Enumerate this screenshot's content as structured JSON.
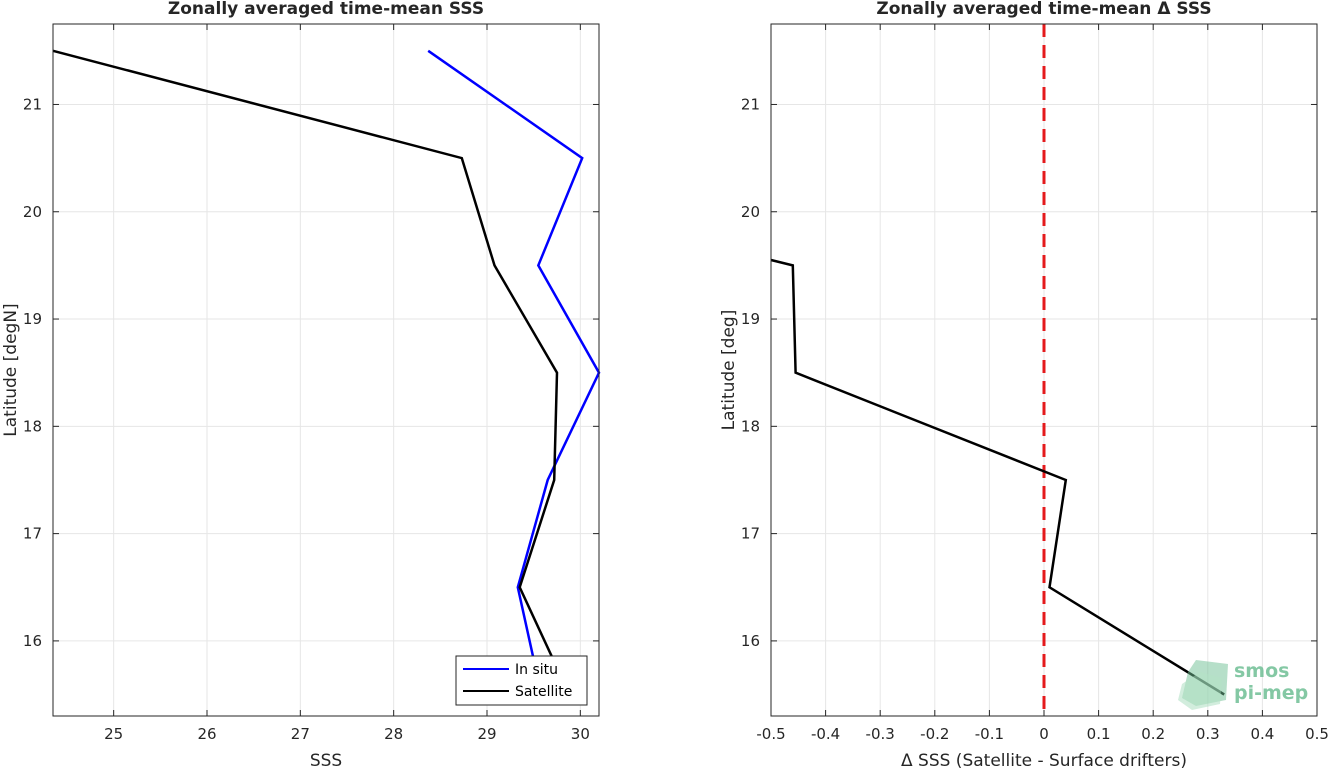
{
  "chart_data": [
    {
      "type": "line",
      "title": "Zonally averaged time-mean SSS",
      "xlabel": "SSS",
      "ylabel": "Latitude [degN]",
      "xlim": [
        24.35,
        30.2
      ],
      "ylim": [
        15.3,
        21.75
      ],
      "xticks": [
        25,
        26,
        27,
        28,
        29,
        30
      ],
      "yticks": [
        16,
        17,
        18,
        19,
        20,
        21
      ],
      "grid": true,
      "legend_position": "bottom-right",
      "series": [
        {
          "name": "In situ",
          "color": "#0000ff",
          "points": [
            [
              28.37,
              21.5
            ],
            [
              30.02,
              20.5
            ],
            [
              29.55,
              19.5
            ],
            [
              30.2,
              18.5
            ],
            [
              29.65,
              17.5
            ],
            [
              29.33,
              16.5
            ],
            [
              29.52,
              15.75
            ]
          ]
        },
        {
          "name": "Satellite",
          "color": "#000000",
          "points": [
            [
              24.35,
              21.5
            ],
            [
              28.73,
              20.5
            ],
            [
              29.08,
              19.5
            ],
            [
              29.75,
              18.5
            ],
            [
              29.72,
              17.5
            ],
            [
              29.35,
              16.5
            ],
            [
              29.75,
              15.75
            ]
          ]
        }
      ]
    },
    {
      "type": "line",
      "title": "Zonally averaged time-mean Δ SSS",
      "xlabel": "Δ SSS (Satellite - Surface drifters)",
      "ylabel": "Latitude [deg]",
      "xlim": [
        -0.5,
        0.5
      ],
      "ylim": [
        15.3,
        21.75
      ],
      "xticks": [
        "-0.5",
        "-0.4",
        "-0.3",
        "-0.2",
        "-0.1",
        "0",
        "0.1",
        "0.2",
        "0.3",
        "0.4",
        "0.5"
      ],
      "yticks": [
        16,
        17,
        18,
        19,
        20,
        21
      ],
      "grid": true,
      "reference_line": {
        "x": 0,
        "color": "#e41a1c",
        "style": "dashed"
      },
      "series": [
        {
          "color": "#000000",
          "points": [
            [
              -0.5,
              19.55
            ],
            [
              -0.46,
              19.5
            ],
            [
              -0.455,
              18.5
            ],
            [
              0.04,
              17.5
            ],
            [
              0.01,
              16.5
            ],
            [
              0.33,
              15.5
            ]
          ]
        }
      ]
    }
  ],
  "watermark": {
    "line1": "smos",
    "line2": "pi-mep",
    "color": "#6fbf95"
  }
}
